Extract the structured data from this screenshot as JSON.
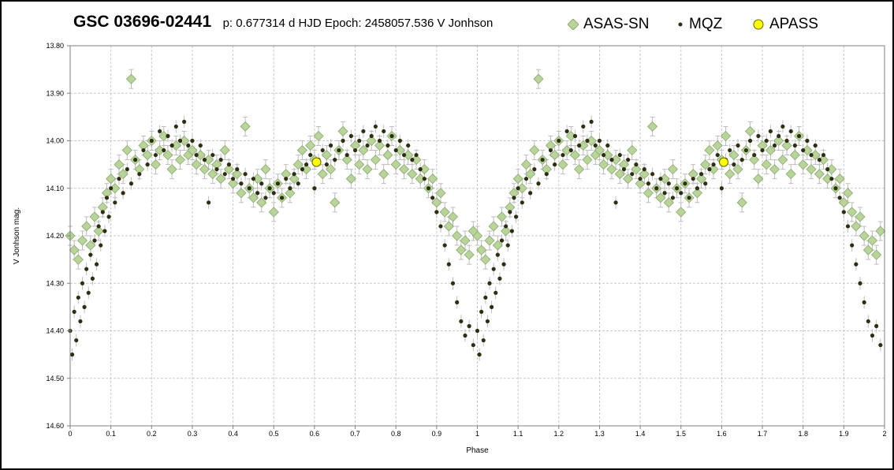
{
  "header": {
    "title": "GSC 03696-02441",
    "meta": "p: 0.677314 d  HJD Epoch: 2458057.536  V Jonhson"
  },
  "legend": {
    "asas": "ASAS-SN",
    "mqz": "MQZ",
    "apass": "APASS"
  },
  "colors": {
    "asas_fill": "#b8d49a",
    "asas_stroke": "#8aa86c",
    "mqz_fill": "#2e2e12",
    "apass_fill": "#ffff00",
    "apass_stroke": "#666600",
    "errorbar": "#bdbdbd",
    "grid": "#c8c8c8"
  },
  "chart_data": {
    "type": "scatter",
    "title": "GSC 03696-02441",
    "subtitle": "p: 0.677314 d  HJD Epoch: 2458057.536  V Jonhson",
    "xlabel": "Phase",
    "ylabel": "V Jonhson mag.",
    "xlim": [
      0,
      2
    ],
    "ylim": [
      13.8,
      14.6
    ],
    "y_inverted": true,
    "grid": true,
    "legend_position": "top",
    "x_ticks": [
      "0",
      "0.1",
      "0.2",
      "0.3",
      "0.4",
      "0.5",
      "0.6",
      "0.7",
      "0.8",
      "0.9",
      "1",
      "1.1",
      "1.2",
      "1.3",
      "1.4",
      "1.5",
      "1.6",
      "1.7",
      "1.8",
      "1.9",
      "2"
    ],
    "y_ticks": [
      "13.80",
      "13.90",
      "14.00",
      "14.10",
      "14.20",
      "14.30",
      "14.40",
      "14.50",
      "14.60"
    ],
    "light_curve_shape": {
      "description_points": [
        {
          "phase": 0.0,
          "mag": 14.4
        },
        {
          "phase": 0.03,
          "mag": 14.33
        },
        {
          "phase": 0.06,
          "mag": 14.24
        },
        {
          "phase": 0.1,
          "mag": 14.13
        },
        {
          "phase": 0.15,
          "mag": 14.06
        },
        {
          "phase": 0.2,
          "mag": 14.02
        },
        {
          "phase": 0.25,
          "mag": 14.0
        },
        {
          "phase": 0.3,
          "mag": 14.01
        },
        {
          "phase": 0.35,
          "mag": 14.04
        },
        {
          "phase": 0.4,
          "mag": 14.08
        },
        {
          "phase": 0.45,
          "mag": 14.1
        },
        {
          "phase": 0.5,
          "mag": 14.11
        },
        {
          "phase": 0.55,
          "mag": 14.09
        },
        {
          "phase": 0.6,
          "mag": 14.05
        },
        {
          "phase": 0.65,
          "mag": 14.03
        },
        {
          "phase": 0.7,
          "mag": 14.01
        },
        {
          "phase": 0.75,
          "mag": 14.0
        },
        {
          "phase": 0.8,
          "mag": 14.01
        },
        {
          "phase": 0.85,
          "mag": 14.05
        },
        {
          "phase": 0.9,
          "mag": 14.14
        },
        {
          "phase": 0.94,
          "mag": 14.26
        },
        {
          "phase": 0.97,
          "mag": 14.36
        },
        {
          "phase": 1.0,
          "mag": 14.4
        }
      ]
    },
    "series": [
      {
        "name": "ASAS-SN",
        "marker": "diamond",
        "points": [
          {
            "x": 0.0,
            "y": 14.2
          },
          {
            "x": 0.01,
            "y": 14.23
          },
          {
            "x": 0.02,
            "y": 14.25
          },
          {
            "x": 0.03,
            "y": 14.21
          },
          {
            "x": 0.04,
            "y": 14.18
          },
          {
            "x": 0.05,
            "y": 14.22
          },
          {
            "x": 0.06,
            "y": 14.16
          },
          {
            "x": 0.07,
            "y": 14.19
          },
          {
            "x": 0.08,
            "y": 14.14
          },
          {
            "x": 0.09,
            "y": 14.11
          },
          {
            "x": 0.1,
            "y": 14.08
          },
          {
            "x": 0.11,
            "y": 14.1
          },
          {
            "x": 0.12,
            "y": 14.05
          },
          {
            "x": 0.13,
            "y": 14.07
          },
          {
            "x": 0.14,
            "y": 14.02
          },
          {
            "x": 0.15,
            "y": 13.87
          },
          {
            "x": 0.16,
            "y": 14.04
          },
          {
            "x": 0.17,
            "y": 14.06
          },
          {
            "x": 0.18,
            "y": 14.01
          },
          {
            "x": 0.19,
            "y": 14.03
          },
          {
            "x": 0.2,
            "y": 14.0
          },
          {
            "x": 0.21,
            "y": 14.05
          },
          {
            "x": 0.22,
            "y": 14.02
          },
          {
            "x": 0.23,
            "y": 13.99
          },
          {
            "x": 0.24,
            "y": 14.03
          },
          {
            "x": 0.25,
            "y": 14.06
          },
          {
            "x": 0.26,
            "y": 14.01
          },
          {
            "x": 0.27,
            "y": 14.04
          },
          {
            "x": 0.28,
            "y": 14.0
          },
          {
            "x": 0.29,
            "y": 14.03
          },
          {
            "x": 0.3,
            "y": 14.02
          },
          {
            "x": 0.31,
            "y": 14.05
          },
          {
            "x": 0.32,
            "y": 14.03
          },
          {
            "x": 0.33,
            "y": 14.06
          },
          {
            "x": 0.34,
            "y": 14.04
          },
          {
            "x": 0.35,
            "y": 14.07
          },
          {
            "x": 0.36,
            "y": 14.05
          },
          {
            "x": 0.37,
            "y": 14.08
          },
          {
            "x": 0.38,
            "y": 14.02
          },
          {
            "x": 0.39,
            "y": 14.06
          },
          {
            "x": 0.4,
            "y": 14.09
          },
          {
            "x": 0.41,
            "y": 14.07
          },
          {
            "x": 0.42,
            "y": 14.11
          },
          {
            "x": 0.43,
            "y": 13.97
          },
          {
            "x": 0.44,
            "y": 14.1
          },
          {
            "x": 0.45,
            "y": 14.12
          },
          {
            "x": 0.46,
            "y": 14.08
          },
          {
            "x": 0.47,
            "y": 14.13
          },
          {
            "x": 0.48,
            "y": 14.06
          },
          {
            "x": 0.49,
            "y": 14.1
          },
          {
            "x": 0.5,
            "y": 14.15
          },
          {
            "x": 0.51,
            "y": 14.09
          },
          {
            "x": 0.52,
            "y": 14.12
          },
          {
            "x": 0.53,
            "y": 14.07
          },
          {
            "x": 0.54,
            "y": 14.11
          },
          {
            "x": 0.55,
            "y": 14.08
          },
          {
            "x": 0.56,
            "y": 14.05
          },
          {
            "x": 0.57,
            "y": 14.02
          },
          {
            "x": 0.58,
            "y": 14.06
          },
          {
            "x": 0.59,
            "y": 14.01
          },
          {
            "x": 0.6,
            "y": 14.04
          },
          {
            "x": 0.61,
            "y": 13.99
          },
          {
            "x": 0.62,
            "y": 14.07
          },
          {
            "x": 0.63,
            "y": 14.03
          },
          {
            "x": 0.64,
            "y": 14.06
          },
          {
            "x": 0.65,
            "y": 14.13
          },
          {
            "x": 0.66,
            "y": 14.02
          },
          {
            "x": 0.67,
            "y": 13.98
          },
          {
            "x": 0.68,
            "y": 14.04
          },
          {
            "x": 0.69,
            "y": 14.08
          },
          {
            "x": 0.7,
            "y": 14.01
          },
          {
            "x": 0.71,
            "y": 14.05
          },
          {
            "x": 0.72,
            "y": 14.02
          },
          {
            "x": 0.73,
            "y": 14.06
          },
          {
            "x": 0.74,
            "y": 14.0
          },
          {
            "x": 0.75,
            "y": 14.04
          },
          {
            "x": 0.76,
            "y": 14.01
          },
          {
            "x": 0.77,
            "y": 14.07
          },
          {
            "x": 0.78,
            "y": 14.03
          },
          {
            "x": 0.79,
            "y": 13.99
          },
          {
            "x": 0.8,
            "y": 14.05
          },
          {
            "x": 0.81,
            "y": 14.02
          },
          {
            "x": 0.82,
            "y": 14.06
          },
          {
            "x": 0.83,
            "y": 14.03
          },
          {
            "x": 0.84,
            "y": 14.07
          },
          {
            "x": 0.85,
            "y": 14.04
          },
          {
            "x": 0.86,
            "y": 14.08
          },
          {
            "x": 0.87,
            "y": 14.06
          },
          {
            "x": 0.88,
            "y": 14.1
          },
          {
            "x": 0.89,
            "y": 14.08
          },
          {
            "x": 0.9,
            "y": 14.13
          },
          {
            "x": 0.91,
            "y": 14.11
          },
          {
            "x": 0.92,
            "y": 14.15
          },
          {
            "x": 0.93,
            "y": 14.18
          },
          {
            "x": 0.94,
            "y": 14.16
          },
          {
            "x": 0.95,
            "y": 14.2
          },
          {
            "x": 0.96,
            "y": 14.23
          },
          {
            "x": 0.97,
            "y": 14.21
          },
          {
            "x": 0.98,
            "y": 14.24
          },
          {
            "x": 0.99,
            "y": 14.19
          }
        ]
      },
      {
        "name": "MQZ",
        "marker": "dot",
        "points": [
          {
            "x": 0.0,
            "y": 14.4
          },
          {
            "x": 0.005,
            "y": 14.45
          },
          {
            "x": 0.01,
            "y": 14.36
          },
          {
            "x": 0.015,
            "y": 14.42
          },
          {
            "x": 0.02,
            "y": 14.33
          },
          {
            "x": 0.025,
            "y": 14.38
          },
          {
            "x": 0.03,
            "y": 14.3
          },
          {
            "x": 0.035,
            "y": 14.35
          },
          {
            "x": 0.04,
            "y": 14.27
          },
          {
            "x": 0.045,
            "y": 14.32
          },
          {
            "x": 0.05,
            "y": 14.24
          },
          {
            "x": 0.055,
            "y": 14.29
          },
          {
            "x": 0.06,
            "y": 14.21
          },
          {
            "x": 0.065,
            "y": 14.26
          },
          {
            "x": 0.07,
            "y": 14.18
          },
          {
            "x": 0.075,
            "y": 14.22
          },
          {
            "x": 0.08,
            "y": 14.15
          },
          {
            "x": 0.085,
            "y": 14.19
          },
          {
            "x": 0.09,
            "y": 14.12
          },
          {
            "x": 0.095,
            "y": 14.16
          },
          {
            "x": 0.1,
            "y": 14.1
          },
          {
            "x": 0.11,
            "y": 14.13
          },
          {
            "x": 0.12,
            "y": 14.08
          },
          {
            "x": 0.13,
            "y": 14.11
          },
          {
            "x": 0.14,
            "y": 14.06
          },
          {
            "x": 0.15,
            "y": 14.09
          },
          {
            "x": 0.16,
            "y": 14.04
          },
          {
            "x": 0.17,
            "y": 14.07
          },
          {
            "x": 0.18,
            "y": 14.02
          },
          {
            "x": 0.19,
            "y": 14.05
          },
          {
            "x": 0.2,
            "y": 14.0
          },
          {
            "x": 0.21,
            "y": 14.03
          },
          {
            "x": 0.22,
            "y": 13.98
          },
          {
            "x": 0.23,
            "y": 14.02
          },
          {
            "x": 0.24,
            "y": 13.99
          },
          {
            "x": 0.25,
            "y": 14.01
          },
          {
            "x": 0.26,
            "y": 13.97
          },
          {
            "x": 0.27,
            "y": 14.0
          },
          {
            "x": 0.28,
            "y": 13.96
          },
          {
            "x": 0.29,
            "y": 14.01
          },
          {
            "x": 0.3,
            "y": 14.0
          },
          {
            "x": 0.31,
            "y": 14.03
          },
          {
            "x": 0.32,
            "y": 14.01
          },
          {
            "x": 0.33,
            "y": 14.04
          },
          {
            "x": 0.34,
            "y": 14.13
          },
          {
            "x": 0.35,
            "y": 14.03
          },
          {
            "x": 0.36,
            "y": 14.06
          },
          {
            "x": 0.37,
            "y": 14.04
          },
          {
            "x": 0.38,
            "y": 14.07
          },
          {
            "x": 0.39,
            "y": 14.05
          },
          {
            "x": 0.4,
            "y": 14.08
          },
          {
            "x": 0.41,
            "y": 14.06
          },
          {
            "x": 0.42,
            "y": 14.09
          },
          {
            "x": 0.43,
            "y": 14.07
          },
          {
            "x": 0.44,
            "y": 14.1
          },
          {
            "x": 0.45,
            "y": 14.08
          },
          {
            "x": 0.46,
            "y": 14.11
          },
          {
            "x": 0.47,
            "y": 14.09
          },
          {
            "x": 0.48,
            "y": 14.12
          },
          {
            "x": 0.49,
            "y": 14.1
          },
          {
            "x": 0.5,
            "y": 14.11
          },
          {
            "x": 0.51,
            "y": 14.09
          },
          {
            "x": 0.52,
            "y": 14.12
          },
          {
            "x": 0.53,
            "y": 14.08
          },
          {
            "x": 0.54,
            "y": 14.1
          },
          {
            "x": 0.55,
            "y": 14.07
          },
          {
            "x": 0.56,
            "y": 14.09
          },
          {
            "x": 0.57,
            "y": 14.06
          },
          {
            "x": 0.58,
            "y": 14.05
          },
          {
            "x": 0.59,
            "y": 14.03
          },
          {
            "x": 0.6,
            "y": 14.1
          },
          {
            "x": 0.61,
            "y": 14.04
          },
          {
            "x": 0.62,
            "y": 14.02
          },
          {
            "x": 0.63,
            "y": 14.05
          },
          {
            "x": 0.64,
            "y": 14.01
          },
          {
            "x": 0.65,
            "y": 14.04
          },
          {
            "x": 0.66,
            "y": 14.02
          },
          {
            "x": 0.67,
            "y": 14.0
          },
          {
            "x": 0.68,
            "y": 14.03
          },
          {
            "x": 0.69,
            "y": 13.99
          },
          {
            "x": 0.7,
            "y": 14.02
          },
          {
            "x": 0.71,
            "y": 14.0
          },
          {
            "x": 0.72,
            "y": 13.98
          },
          {
            "x": 0.73,
            "y": 14.01
          },
          {
            "x": 0.74,
            "y": 13.99
          },
          {
            "x": 0.75,
            "y": 13.97
          },
          {
            "x": 0.76,
            "y": 14.0
          },
          {
            "x": 0.77,
            "y": 13.98
          },
          {
            "x": 0.78,
            "y": 14.01
          },
          {
            "x": 0.79,
            "y": 13.99
          },
          {
            "x": 0.8,
            "y": 14.02
          },
          {
            "x": 0.81,
            "y": 14.0
          },
          {
            "x": 0.82,
            "y": 14.03
          },
          {
            "x": 0.83,
            "y": 14.01
          },
          {
            "x": 0.84,
            "y": 14.04
          },
          {
            "x": 0.85,
            "y": 14.03
          },
          {
            "x": 0.86,
            "y": 14.06
          },
          {
            "x": 0.87,
            "y": 14.08
          },
          {
            "x": 0.88,
            "y": 14.1
          },
          {
            "x": 0.89,
            "y": 14.12
          },
          {
            "x": 0.9,
            "y": 14.15
          },
          {
            "x": 0.91,
            "y": 14.18
          },
          {
            "x": 0.92,
            "y": 14.22
          },
          {
            "x": 0.93,
            "y": 14.26
          },
          {
            "x": 0.94,
            "y": 14.3
          },
          {
            "x": 0.95,
            "y": 14.34
          },
          {
            "x": 0.96,
            "y": 14.38
          },
          {
            "x": 0.97,
            "y": 14.41
          },
          {
            "x": 0.98,
            "y": 14.39
          },
          {
            "x": 0.99,
            "y": 14.43
          }
        ]
      },
      {
        "name": "APASS",
        "marker": "circle",
        "points": [
          {
            "x": 0.605,
            "y": 14.045
          },
          {
            "x": 1.605,
            "y": 14.045
          }
        ]
      }
    ]
  }
}
